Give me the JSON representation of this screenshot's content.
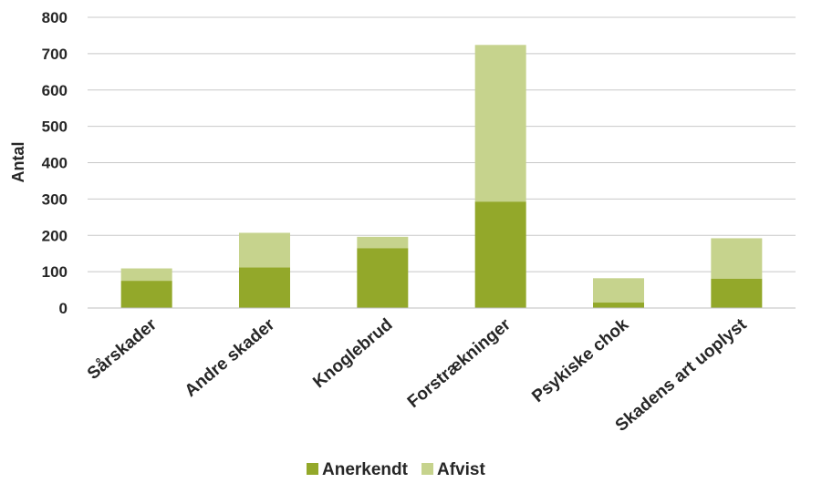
{
  "chart_data": {
    "type": "bar",
    "stacked": true,
    "categories": [
      "Sårskader",
      "Andre skader",
      "Knoglebrud",
      "Forstrækninger",
      "Psykiske chok",
      "Skadens art uoplyst"
    ],
    "series": [
      {
        "name": "Anerkendt",
        "values": [
          75,
          112,
          165,
          293,
          15,
          81
        ],
        "color": "#93a82a"
      },
      {
        "name": "Afvist",
        "values": [
          34,
          95,
          31,
          431,
          67,
          111
        ],
        "color": "#c6d38d"
      }
    ],
    "xlabel": "",
    "ylabel": "Antal",
    "ylim": [
      0,
      800
    ],
    "yticks": [
      0,
      100,
      200,
      300,
      400,
      500,
      600,
      700,
      800
    ],
    "grid": true,
    "legend_position": "bottom"
  }
}
